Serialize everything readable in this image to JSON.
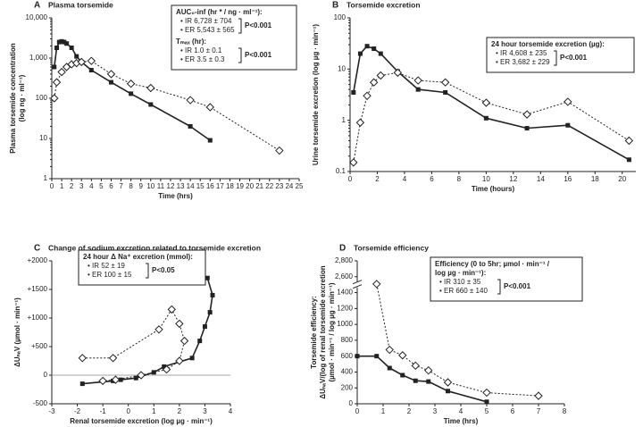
{
  "chart_data": [
    {
      "type": "line",
      "panel": "A",
      "title": "Plasma torsemide",
      "xlabel": "Time (hrs)",
      "ylabel": [
        "Plasma torsemide concentration",
        "(log ng · ml⁻¹)"
      ],
      "xlim": [
        0,
        25
      ],
      "xticks": [
        0,
        1,
        2,
        3,
        4,
        5,
        6,
        7,
        8,
        9,
        10,
        11,
        12,
        13,
        14,
        15,
        16,
        17,
        18,
        19,
        20,
        21,
        22,
        23,
        24,
        25
      ],
      "ylim": [
        1,
        10000
      ],
      "ylog": true,
      "yticks": [
        1,
        10,
        100,
        {
          "value": 1000,
          "label": "1,000"
        },
        {
          "value": 10000,
          "label": "10,000"
        }
      ],
      "series": [
        {
          "color": "#222",
          "marker": "square",
          "dash": false,
          "x": [
            0.25,
            0.5,
            0.75,
            1,
            1.25,
            1.5,
            2,
            2.5,
            3,
            4,
            6,
            8,
            10,
            14,
            16
          ],
          "values": [
            600,
            1800,
            2500,
            2600,
            2500,
            2300,
            1800,
            1100,
            800,
            500,
            250,
            130,
            70,
            20,
            9
          ]
        },
        {
          "color": "#222",
          "marker": "diamond",
          "dash": true,
          "x": [
            0.25,
            0.5,
            1,
            1.5,
            2,
            2.5,
            3,
            4,
            6,
            8,
            10,
            14,
            16,
            23
          ],
          "values": [
            100,
            250,
            450,
            600,
            700,
            750,
            800,
            850,
            400,
            230,
            180,
            90,
            60,
            5
          ]
        }
      ],
      "box": [
        {
          "heading": [
            "AUC₀-inf (hr * / ng · ml⁻¹):"
          ],
          "items": [
            "• IR 6,728 ± 704",
            "• ER 5,543 ± 565"
          ],
          "p": "P<0.001"
        },
        {
          "heading": [
            "Tₘₐₓ (hr):"
          ],
          "items": [
            "• IR 1.0 ± 0.1",
            "• ER 3.5 ± 0.3"
          ],
          "p": "P<0.001"
        }
      ]
    },
    {
      "type": "line",
      "panel": "B",
      "title": "Torsemide excretion",
      "xlabel": "Time (hours)",
      "ylabel": [
        "Urine torsemide excretion (log µg · min⁻¹)"
      ],
      "xlim": [
        0,
        21
      ],
      "xticks": [
        0,
        2,
        4,
        6,
        8,
        10,
        12,
        14,
        16,
        18,
        20
      ],
      "ylim": [
        0.1,
        100
      ],
      "ylog": true,
      "yticks": [
        0.1,
        1,
        10,
        100
      ],
      "series": [
        {
          "color": "#222",
          "marker": "square",
          "dash": false,
          "x": [
            0.25,
            0.75,
            1.25,
            1.75,
            2.25,
            3.5,
            5,
            7,
            10,
            13,
            16,
            20.5
          ],
          "values": [
            3.5,
            20,
            28,
            25,
            20,
            9,
            4,
            3.5,
            1.1,
            0.7,
            0.8,
            0.17
          ]
        },
        {
          "color": "#222",
          "marker": "diamond",
          "dash": true,
          "x": [
            0.25,
            0.75,
            1.25,
            1.75,
            2.25,
            3.5,
            5,
            7,
            10,
            13,
            16,
            20.5
          ],
          "values": [
            0.15,
            0.9,
            3,
            5.5,
            7.5,
            8.5,
            6,
            5.5,
            2.2,
            1.3,
            2.3,
            0.4
          ]
        }
      ],
      "box": [
        {
          "heading": [
            "24 hour torsemide excretion (µg):"
          ],
          "items": [
            "• IR 4,608 ± 235",
            "• ER 3,682 ± 229"
          ],
          "p": "P<0.001"
        }
      ]
    },
    {
      "type": "line",
      "panel": "C",
      "title": "Change of sodium excretion related to torsemide excretion",
      "xlabel": "Renal torsemide excretion (log µg · min⁻¹)",
      "ylabel": [
        "ΔUₙₐV (µmol · min⁻¹)"
      ],
      "xlim": [
        -3,
        4
      ],
      "xticks": [
        -3,
        -2,
        -1,
        0,
        1,
        2,
        3,
        4
      ],
      "ylim": [
        -500,
        2000
      ],
      "yticks": [
        -500,
        0,
        {
          "value": 500,
          "label": "+500"
        },
        {
          "value": 1000,
          "label": "+1000"
        },
        {
          "value": 1500,
          "label": "+1500"
        },
        {
          "value": 2000,
          "label": "+2000"
        }
      ],
      "series": [
        {
          "color": "#222",
          "marker": "square",
          "dash": false,
          "x": [
            -1.8,
            -0.6,
            -0.3,
            0.3,
            1.0,
            1.4,
            2.5,
            2.8,
            3.0,
            3.2,
            3.3,
            3.1
          ],
          "values": [
            -150,
            -100,
            -80,
            -50,
            50,
            150,
            300,
            600,
            850,
            1100,
            1400,
            1700
          ]
        },
        {
          "color": "#222",
          "marker": "diamond",
          "dash": true,
          "x": [
            -1.8,
            -0.6,
            1.2,
            1.7,
            2.0,
            2.2,
            2.0,
            1.5,
            0.5,
            -0.5,
            -1.0
          ],
          "values": [
            300,
            300,
            800,
            1150,
            900,
            600,
            250,
            100,
            0,
            -80,
            -100
          ]
        }
      ],
      "box": [
        {
          "heading": [
            "24 hour Δ Na⁺ excretion (mmol):"
          ],
          "items": [
            "• IR 52 ± 19",
            "• ER 100 ± 15"
          ],
          "p": "P<0.05"
        }
      ]
    },
    {
      "type": "line",
      "panel": "D",
      "title": "Torsemide efficiency",
      "xlabel": "Time (hrs)",
      "ylabel": [
        "Torsemide efficiency:",
        "ΔUₙₐV/(log of renal torsemide excretion",
        "(µmol · min⁻¹ / log µg · min⁻¹)"
      ],
      "xlim": [
        0,
        8
      ],
      "xticks": [
        0,
        1,
        2,
        3,
        4,
        5,
        6,
        7,
        8
      ],
      "ylim": [
        0,
        2800
      ],
      "broken_axis": true,
      "yticks": [
        0,
        200,
        400,
        600,
        800,
        1000,
        1200,
        1400,
        {
          "value": 2600,
          "label": "2,600"
        },
        {
          "value": 2800,
          "label": "2,800"
        }
      ],
      "series": [
        {
          "color": "#222",
          "marker": "square",
          "dash": false,
          "x": [
            0,
            0.75,
            1.25,
            1.75,
            2.25,
            2.75,
            3.5,
            5
          ],
          "values": [
            600,
            600,
            450,
            360,
            290,
            280,
            160,
            25
          ]
        },
        {
          "color": "#222",
          "marker": "diamond",
          "dash": true,
          "x": [
            0.75,
            1.25,
            1.75,
            2.25,
            2.75,
            3.5,
            5,
            7
          ],
          "values": [
            2050,
            680,
            610,
            480,
            420,
            270,
            140,
            100
          ]
        }
      ],
      "box": [
        {
          "heading": [
            "Efficiency (0 to 5hr; µmol · min⁻¹ /",
            "log µg · min⁻¹):"
          ],
          "items": [
            "• IR 310 ± 35",
            "• ER 660 ± 140"
          ],
          "p": "P<0.001"
        }
      ]
    }
  ]
}
